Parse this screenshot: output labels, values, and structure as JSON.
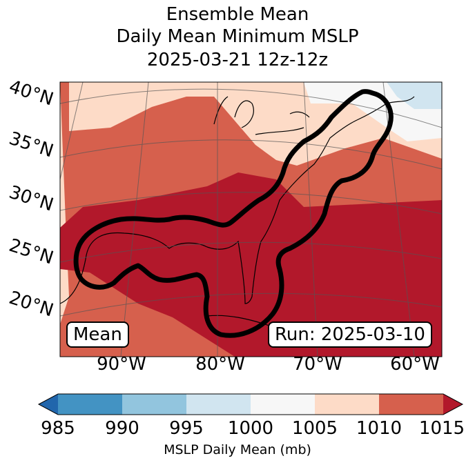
{
  "title": {
    "line1": "Ensemble Mean",
    "line2": "Daily Mean Minimum MSLP",
    "line3": "2025-03-21 12z-12z"
  },
  "map": {
    "lat_labels": [
      "40°N",
      "35°N",
      "30°N",
      "25°N",
      "20°N"
    ],
    "lon_labels": [
      "90°W",
      "80°W",
      "70°W",
      "60°W"
    ],
    "mean_badge": "Mean",
    "run_badge": "Run: 2025-03-10",
    "fill_colors": {
      "1015+": "#b2182b",
      "1010-1015": "#d6604d",
      "1005-1010": "#fddbc7",
      "1000-1005": "#f7f7f7",
      "995-1000": "#d1e5f0"
    },
    "contour_color": "#000000"
  },
  "colorbar": {
    "ticks": [
      "985",
      "990",
      "995",
      "1000",
      "1005",
      "1010",
      "1015"
    ],
    "label": "MSLP Daily Mean (mb)",
    "colors": [
      "#2166ac",
      "#4393c3",
      "#92c5de",
      "#d1e5f0",
      "#f7f7f7",
      "#fddbc7",
      "#d6604d",
      "#b2182b"
    ]
  }
}
